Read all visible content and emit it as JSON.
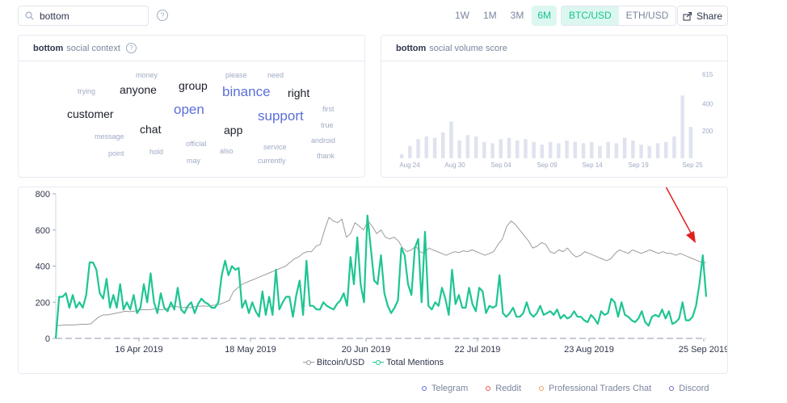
{
  "search": {
    "value": "bottom"
  },
  "help_glyph": "?",
  "range_tabs": [
    "1W",
    "1M",
    "3M",
    "6M"
  ],
  "range_active": "6M",
  "pairs": [
    "BTC/USD",
    "ETH/USD"
  ],
  "pair_active": "BTC/USD",
  "share_label": "Share",
  "social_context": {
    "keyword": "bottom",
    "title": "social context",
    "words": [
      {
        "text": "money",
        "size": 9,
        "color": "#9faac4"
      },
      {
        "text": "please",
        "size": 9,
        "color": "#9faac4"
      },
      {
        "text": "need",
        "size": 9,
        "color": "#9faac4"
      },
      {
        "text": "trying",
        "size": 9,
        "color": "#9faac4"
      },
      {
        "text": "anyone",
        "size": 14,
        "color": "#1c1f2a"
      },
      {
        "text": "group",
        "size": 14,
        "color": "#1c1f2a"
      },
      {
        "text": "binance",
        "size": 17,
        "color": "#5b6fd9"
      },
      {
        "text": "right",
        "size": 14,
        "color": "#1c1f2a"
      },
      {
        "text": "customer",
        "size": 14,
        "color": "#1c1f2a"
      },
      {
        "text": "open",
        "size": 17,
        "color": "#5b6fd9"
      },
      {
        "text": "support",
        "size": 17,
        "color": "#5b6fd9"
      },
      {
        "text": "first",
        "size": 9,
        "color": "#9faac4"
      },
      {
        "text": "true",
        "size": 9,
        "color": "#9faac4"
      },
      {
        "text": "chat",
        "size": 14,
        "color": "#1c1f2a"
      },
      {
        "text": "app",
        "size": 14,
        "color": "#1c1f2a"
      },
      {
        "text": "message",
        "size": 9,
        "color": "#9faac4"
      },
      {
        "text": "android",
        "size": 9,
        "color": "#9faac4"
      },
      {
        "text": "official",
        "size": 9,
        "color": "#9faac4"
      },
      {
        "text": "service",
        "size": 9,
        "color": "#9faac4"
      },
      {
        "text": "point",
        "size": 9,
        "color": "#9faac4"
      },
      {
        "text": "hold",
        "size": 9,
        "color": "#9faac4"
      },
      {
        "text": "also",
        "size": 9,
        "color": "#9faac4"
      },
      {
        "text": "thank",
        "size": 9,
        "color": "#9faac4"
      },
      {
        "text": "may",
        "size": 9,
        "color": "#9faac4"
      },
      {
        "text": "currently",
        "size": 9,
        "color": "#9faac4"
      }
    ]
  },
  "social_volume": {
    "keyword": "bottom",
    "title": "social volume score"
  },
  "chart_data": [
    {
      "type": "bar",
      "ticks_x": [
        "Aug 24",
        "Aug 30",
        "Sep 04",
        "Sep 09",
        "Sep 14",
        "Sep 19",
        "Sep 25"
      ],
      "ticks_y": [
        "200",
        "400",
        "615"
      ],
      "ylim": [
        0,
        615
      ],
      "values": [
        30,
        90,
        140,
        160,
        150,
        190,
        270,
        130,
        170,
        160,
        120,
        110,
        140,
        150,
        130,
        140,
        120,
        100,
        120,
        110,
        130,
        120,
        110,
        120,
        90,
        120,
        110,
        150,
        130,
        100,
        90,
        110,
        120,
        160,
        460,
        230
      ],
      "color": "#dfe3ef"
    },
    {
      "type": "line",
      "x_ticks": [
        "16 Apr 2019",
        "18 May 2019",
        "20 Jun 2019",
        "22 Jul 2019",
        "23 Aug 2019",
        "25 Sep 2019"
      ],
      "y_ticks": [
        "0",
        "200",
        "400",
        "600",
        "800"
      ],
      "ylim": [
        0,
        800
      ],
      "series": [
        {
          "name": "Bitcoin/USD",
          "color": "#9b9b9b",
          "values": [
            70,
            72,
            74,
            75,
            74,
            76,
            78,
            78,
            80,
            100,
            120,
            130,
            130,
            135,
            140,
            145,
            150,
            148,
            150,
            155,
            160,
            158,
            160,
            165,
            158,
            160,
            170,
            180,
            175,
            170,
            172,
            170,
            175,
            178,
            180,
            178,
            182,
            185,
            190,
            200,
            210,
            260,
            280,
            300,
            310,
            320,
            330,
            340,
            350,
            360,
            370,
            380,
            390,
            400,
            420,
            440,
            450,
            470,
            480,
            480,
            510,
            520,
            600,
            670,
            650,
            640,
            660,
            560,
            580,
            640,
            620,
            600,
            650,
            620,
            580,
            600,
            560,
            550,
            560,
            540,
            500,
            480,
            490,
            510,
            480,
            470,
            500,
            490,
            480,
            470,
            460,
            470,
            480,
            475,
            485,
            480,
            490,
            480,
            470,
            460,
            470,
            480,
            520,
            550,
            620,
            650,
            630,
            600,
            570,
            540,
            500,
            510,
            530,
            520,
            480,
            470,
            490,
            480,
            500,
            470,
            450,
            460,
            480,
            470,
            460,
            450,
            440,
            430,
            440,
            470,
            490,
            480,
            470,
            490,
            480,
            470,
            480,
            490,
            480,
            470,
            480,
            470,
            470,
            460,
            470,
            460,
            450,
            440,
            430,
            420,
            420
          ]
        },
        {
          "name": "Total Mentions",
          "color": "#1ec593",
          "values": [
            0,
            230,
            230,
            250,
            170,
            240,
            170,
            200,
            170,
            240,
            420,
            420,
            380,
            250,
            220,
            330,
            170,
            240,
            170,
            300,
            160,
            200,
            160,
            240,
            140,
            170,
            300,
            200,
            360,
            200,
            140,
            250,
            170,
            150,
            200,
            160,
            280,
            160,
            140,
            180,
            200,
            140,
            190,
            220,
            200,
            190,
            170,
            170,
            200,
            350,
            430,
            350,
            400,
            380,
            390,
            170,
            210,
            140,
            200,
            150,
            120,
            260,
            130,
            230,
            130,
            380,
            160,
            200,
            230,
            230,
            120,
            240,
            320,
            130,
            430,
            180,
            180,
            160,
            160,
            200,
            180,
            170,
            160,
            190,
            210,
            250,
            180,
            450,
            300,
            560,
            300,
            200,
            680,
            500,
            320,
            300,
            460,
            250,
            180,
            140,
            170,
            210,
            500,
            460,
            300,
            240,
            500,
            550,
            200,
            590,
            180,
            160,
            200,
            180,
            280,
            220,
            130,
            380,
            190,
            240,
            170,
            170,
            280,
            190,
            150,
            280,
            260,
            140,
            180,
            170,
            180,
            350,
            140,
            120,
            140,
            170,
            120,
            120,
            140,
            200,
            140,
            120,
            140,
            180,
            130,
            140,
            150,
            130,
            160,
            110,
            130,
            110,
            120,
            150,
            120,
            120,
            100,
            90,
            130,
            110,
            80,
            150,
            130,
            140,
            220,
            200,
            120,
            200,
            130,
            120,
            100,
            90,
            110,
            150,
            90,
            70,
            120,
            130,
            120,
            160,
            110,
            150,
            80,
            90,
            110,
            200,
            100,
            100,
            120,
            180,
            300,
            460,
            230
          ]
        }
      ]
    }
  ],
  "sources": [
    {
      "label": "Telegram",
      "color": "#5b6fd9"
    },
    {
      "label": "Reddit",
      "color": "#ef5350"
    },
    {
      "label": "Professional Traders Chat",
      "color": "#f5a25d"
    },
    {
      "label": "Discord",
      "color": "#7b61c9"
    }
  ],
  "colors": {
    "accent": "#14c393",
    "accent_bg": "#dcf7ef",
    "annotation_arrow": "#e02020"
  }
}
